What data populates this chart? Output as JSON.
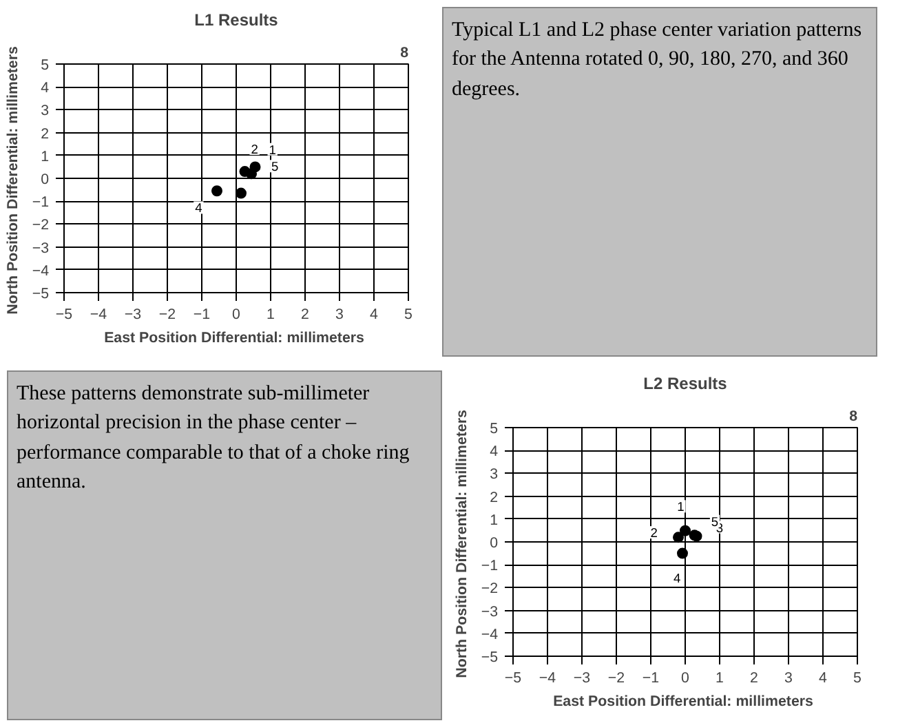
{
  "chart_data": [
    {
      "type": "scatter",
      "title": "L1 Results",
      "xlabel": "East Position Differential:  millimeters",
      "ylabel": "North Position Differential:  millimeters",
      "xlim": [
        -5,
        5
      ],
      "ylim": [
        -5,
        5
      ],
      "xticks": [
        -5,
        -4,
        -3,
        -2,
        -1,
        0,
        1,
        2,
        3,
        4,
        5
      ],
      "yticks": [
        -5,
        -4,
        -3,
        -2,
        -1,
        0,
        1,
        2,
        3,
        4,
        5
      ],
      "grid": true,
      "annotations": [
        "8",
        {
          "text": "1",
          "x": 0.55,
          "y": 0.5
        },
        {
          "text": "2",
          "x": 0.25,
          "y": 0.3
        },
        {
          "text": "4",
          "x": -0.56,
          "y": -0.55
        },
        {
          "text": "5",
          "x": 0.44,
          "y": 0.2
        }
      ],
      "series": [
        {
          "marker": "circle",
          "color": "#000000",
          "x": [
            0.55,
            0.25,
            0.14,
            -0.56,
            0.44
          ],
          "values": [
            0.5,
            0.3,
            -0.65,
            -0.55,
            0.2
          ]
        }
      ]
    },
    {
      "type": "other",
      "title": "Typical L1 and L2 phase center variation patterns for the Antenna rotated 0, 90, 180, 270, and 360 degrees."
    },
    {
      "type": "scatter",
      "title": "L2 Results",
      "xlabel": "East Position Differential:  millimeters",
      "ylabel": "North Position Differential:  millimeters",
      "xlim": [
        -5,
        5
      ],
      "ylim": [
        -5,
        5
      ],
      "xticks": [
        -5,
        -4,
        -3,
        -2,
        -1,
        0,
        1,
        2,
        3,
        4,
        5
      ],
      "yticks": [
        -5,
        -4,
        -3,
        -2,
        -1,
        0,
        1,
        2,
        3,
        4,
        5
      ],
      "grid": true,
      "annotations": [
        "8",
        {
          "text": "1",
          "x": 0.0,
          "y": 0.49
        },
        {
          "text": "2",
          "x": -0.2,
          "y": 0.2
        },
        {
          "text": "3",
          "x": 0.33,
          "y": 0.25
        },
        {
          "text": "4",
          "x": -0.08,
          "y": -0.5
        },
        {
          "text": "5",
          "x": 0.27,
          "y": 0.29
        }
      ],
      "series": [
        {
          "marker": "circle",
          "color": "#000000",
          "x": [
            0.0,
            -0.2,
            0.33,
            -0.08,
            0.27
          ],
          "values": [
            0.49,
            0.2,
            0.25,
            -0.5,
            0.29
          ]
        }
      ]
    },
    {
      "type": "other",
      "title": "These patterns demonstrate sub-millimeter horizontal precision in the phase center – performance comparable to that of a choke ring antenna."
    }
  ]
}
